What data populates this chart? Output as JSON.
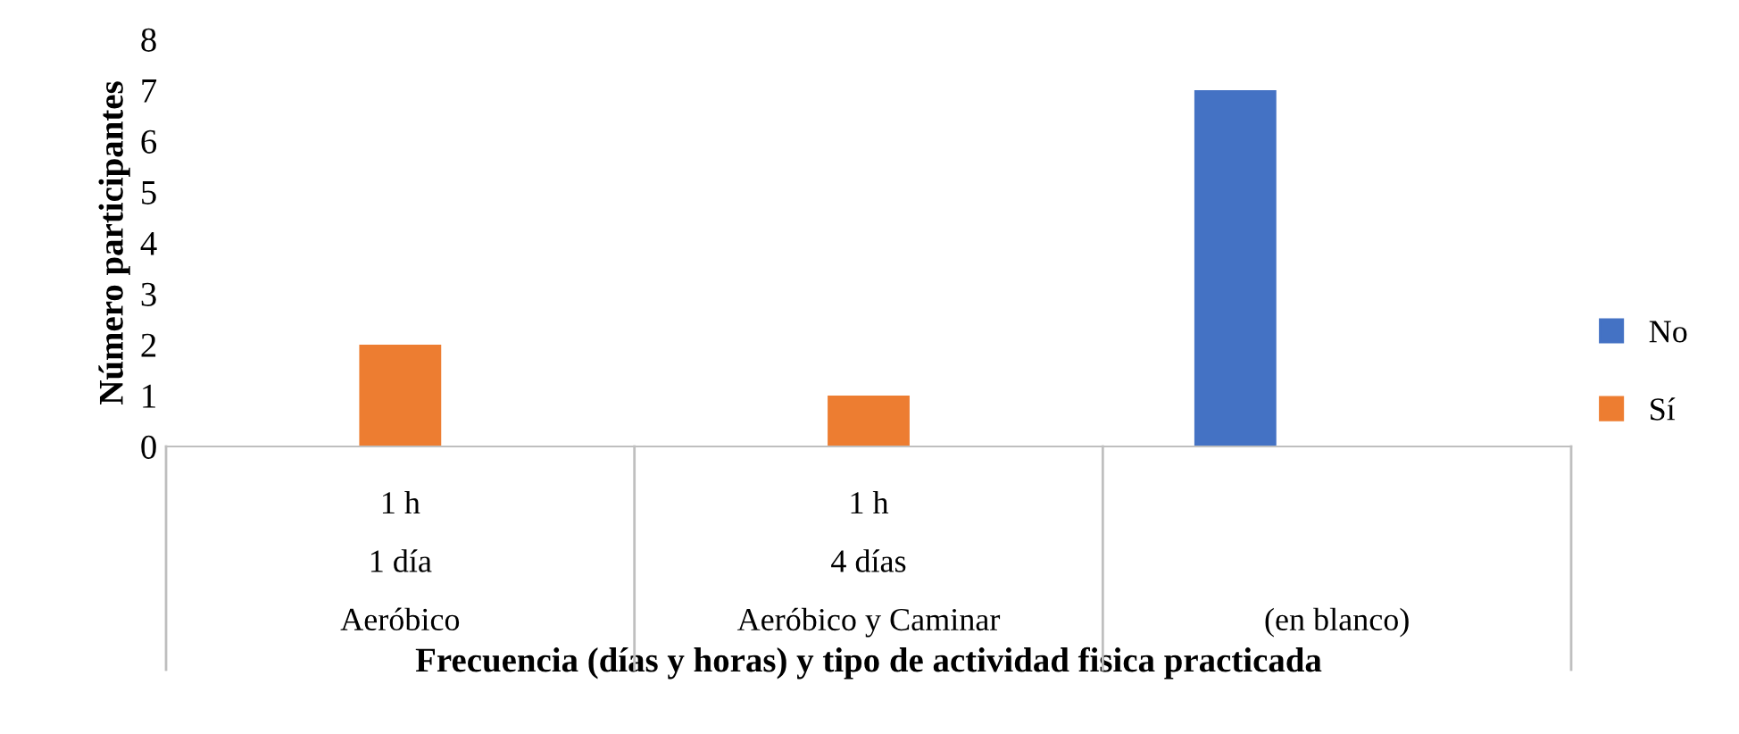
{
  "chart_data": {
    "type": "bar",
    "xlabel": "Frecuencia (días y horas) y tipo de actividad fisica practicada",
    "ylabel": "Número participantes",
    "categories": [
      "1 h\n1 día\nAeróbico",
      "1 h\n4 días\nAeróbico y Caminar",
      "(en blanco)"
    ],
    "series": [
      {
        "name": "No",
        "color": "#4472c4",
        "values": [
          null,
          null,
          7
        ]
      },
      {
        "name": "Sí",
        "color": "#ed7d31",
        "values": [
          2,
          1,
          null
        ]
      }
    ],
    "ylim": [
      0,
      8
    ],
    "yticks": [
      0,
      1,
      2,
      3,
      4,
      5,
      6,
      7,
      8
    ],
    "grid": false,
    "legend": "right"
  }
}
